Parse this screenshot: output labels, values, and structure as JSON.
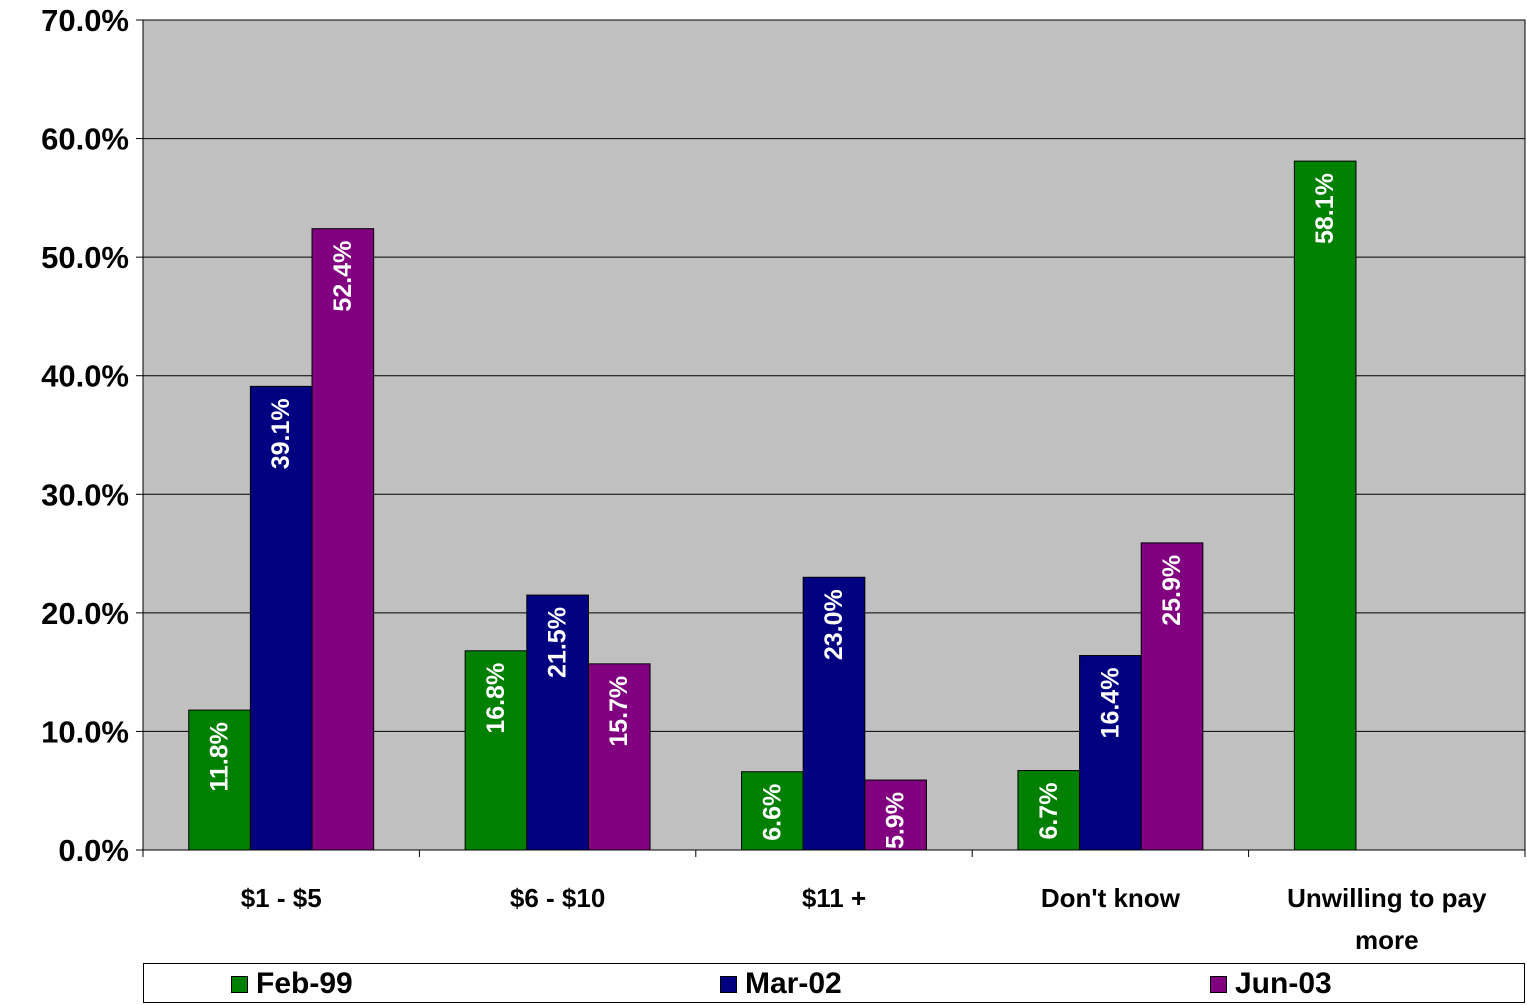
{
  "chart_data": {
    "type": "bar",
    "categories": [
      "$1 - $5",
      "$6 - $10",
      "$11 +",
      "Don't know",
      "Unwilling to pay more"
    ],
    "series": [
      {
        "name": "Feb-99",
        "color": "#008000",
        "values": [
          11.8,
          16.8,
          6.6,
          6.7,
          58.1
        ],
        "labels": [
          "11.8%",
          "16.8%",
          "6.6%",
          "6.7%",
          "58.1%"
        ]
      },
      {
        "name": "Mar-02",
        "color": "#000080",
        "values": [
          39.1,
          21.5,
          23.0,
          16.4,
          null
        ],
        "labels": [
          "39.1%",
          "21.5%",
          "23.0%",
          "16.4%",
          null
        ]
      },
      {
        "name": "Jun-03",
        "color": "#800080",
        "values": [
          52.4,
          15.7,
          5.9,
          25.9,
          null
        ],
        "labels": [
          "52.4%",
          "15.7%",
          "5.9%",
          "25.9%",
          null
        ]
      }
    ],
    "yticks": [
      "0.0%",
      "10.0%",
      "20.0%",
      "30.0%",
      "40.0%",
      "50.0%",
      "60.0%",
      "70.0%"
    ],
    "ylim": [
      0,
      70
    ],
    "title": "",
    "xlabel": "",
    "ylabel": "",
    "grid": true,
    "plot_background": "#c0c0c0",
    "legend_position": "bottom"
  }
}
